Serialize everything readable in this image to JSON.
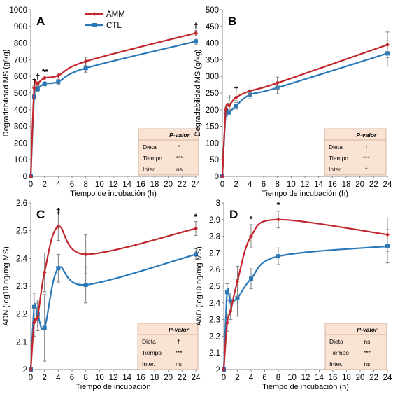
{
  "legend": {
    "amm": "AMM",
    "ctl": "CTL"
  },
  "colors": {
    "amm": "#c0282d",
    "ctl": "#2a78b8",
    "table_bg": "#fbe3d3",
    "table_border": "#c8a690",
    "axis": "#888888",
    "error": "#7f7f7f"
  },
  "chart_data": [
    {
      "panel": "A",
      "type": "line",
      "ylabel": "Degradabilidad MS (g/kg)",
      "xlabel": "Tiempo de incubación (h)",
      "xlim": [
        0,
        24
      ],
      "ylim": [
        0,
        1000
      ],
      "xticks": [
        "0",
        "2",
        "4",
        "6",
        "8",
        "10",
        "12",
        "14",
        "16",
        "18",
        "20",
        "22",
        "24"
      ],
      "yticks": [
        "0",
        "100",
        "200",
        "300",
        "400",
        "500",
        "600",
        "700",
        "800",
        "900",
        "1000"
      ],
      "x": [
        0,
        0.5,
        1,
        2,
        4,
        8,
        24
      ],
      "series": [
        {
          "name": "AMM",
          "values": [
            0,
            530,
            555,
            590,
            605,
            690,
            860
          ],
          "err": [
            0,
            12,
            12,
            12,
            15,
            25,
            15
          ]
        },
        {
          "name": "CTL",
          "values": [
            0,
            478,
            525,
            555,
            568,
            650,
            810
          ],
          "err": [
            0,
            15,
            15,
            12,
            15,
            25,
            20
          ]
        }
      ],
      "annotations": [
        {
          "x": 0.5,
          "y": 555,
          "text": "†"
        },
        {
          "x": 1,
          "y": 580,
          "text": "†"
        },
        {
          "x": 2.1,
          "y": 610,
          "text": "**"
        },
        {
          "x": 24,
          "y": 885,
          "text": "†"
        }
      ],
      "table": {
        "header": "P-valor",
        "rows": [
          [
            "Dieta",
            "*"
          ],
          [
            "Tiempo",
            "***"
          ],
          [
            "Inter.",
            "ns"
          ]
        ]
      }
    },
    {
      "panel": "B",
      "type": "line",
      "ylabel": "Degradabilidad MS (g/kg)",
      "xlabel": "Tiempo de incubación (h)",
      "xlim": [
        0,
        24
      ],
      "ylim": [
        0,
        500
      ],
      "xticks": [
        "0",
        "2",
        "4",
        "6",
        "8",
        "10",
        "12",
        "14",
        "16",
        "18",
        "20",
        "22",
        "24"
      ],
      "yticks": [
        "0",
        "50",
        "100",
        "150",
        "200",
        "250",
        "300",
        "350",
        "400",
        "450",
        "500"
      ],
      "x": [
        0,
        0.5,
        1,
        2,
        4,
        8,
        24
      ],
      "series": [
        {
          "name": "AMM",
          "values": [
            0,
            200,
            212,
            237,
            256,
            280,
            395
          ],
          "err": [
            0,
            8,
            8,
            10,
            12,
            18,
            38
          ]
        },
        {
          "name": "CTL",
          "values": [
            0,
            188,
            192,
            212,
            245,
            266,
            369
          ],
          "err": [
            0,
            8,
            8,
            10,
            12,
            18,
            38
          ]
        }
      ],
      "annotations": [
        {
          "x": 1,
          "y": 225,
          "text": "†"
        },
        {
          "x": 2,
          "y": 252,
          "text": "†"
        }
      ],
      "table": {
        "header": "P-valor",
        "rows": [
          [
            "Dieta",
            "†"
          ],
          [
            "Tiempo",
            "***"
          ],
          [
            "Inter.",
            "*"
          ]
        ]
      }
    },
    {
      "panel": "C",
      "type": "line",
      "ylabel": "ADN  (log10 ng/mg MS)",
      "xlabel": "Tiempo de incubación",
      "xlim": [
        0,
        24
      ],
      "ylim": [
        2,
        2.6
      ],
      "xticks": [
        "0",
        "2",
        "4",
        "6",
        "8",
        "10",
        "12",
        "14",
        "16",
        "18",
        "20",
        "22",
        "24"
      ],
      "yticks": [
        "2",
        "2.1",
        "2.2",
        "2.3",
        "2.4",
        "2.5",
        "2.6"
      ],
      "x": [
        0,
        0.5,
        1,
        2,
        4,
        8,
        24
      ],
      "series": [
        {
          "name": "AMM",
          "values": [
            2.0,
            2.17,
            2.19,
            2.35,
            2.515,
            2.415,
            2.508
          ],
          "err": [
            0,
            0.05,
            0.05,
            0.07,
            0.05,
            0.07,
            0.025
          ]
        },
        {
          "name": "CTL",
          "values": [
            2.0,
            2.225,
            2.2,
            2.15,
            2.365,
            2.305,
            2.415
          ],
          "err": [
            0,
            0.05,
            0.05,
            0.12,
            0.05,
            0.065,
            0.02
          ]
        }
      ],
      "annotations": [
        {
          "x": 4,
          "y": 2.56,
          "text": "†"
        },
        {
          "x": 24,
          "y": 2.54,
          "text": "*"
        }
      ],
      "table": {
        "header": "P-valor",
        "rows": [
          [
            "Dieta",
            "†"
          ],
          [
            "Tiempo",
            "***"
          ],
          [
            "Inter.",
            "ns"
          ]
        ]
      }
    },
    {
      "panel": "D",
      "type": "line",
      "ylabel": "AND (log10 ng/mg MS)",
      "xlabel": "Tiempo de incubación (h)",
      "xlim": [
        0,
        24
      ],
      "ylim": [
        2,
        3
      ],
      "xticks": [
        "0",
        "2",
        "4",
        "6",
        "8",
        "10",
        "12",
        "14",
        "16",
        "18",
        "20",
        "22",
        "24"
      ],
      "yticks": [
        "2",
        "2.1",
        "2.2",
        "2.3",
        "2.4",
        "2.5",
        "2.6",
        "2.7",
        "2.8",
        "2.9",
        "3"
      ],
      "x": [
        0,
        0.5,
        1,
        2,
        4,
        8,
        24
      ],
      "series": [
        {
          "name": "AMM",
          "values": [
            2.0,
            2.28,
            2.35,
            2.53,
            2.8,
            2.9,
            2.81
          ],
          "err": [
            0,
            0.05,
            0.05,
            0.09,
            0.07,
            0.05,
            0.1
          ]
        },
        {
          "name": "CTL",
          "values": [
            2.0,
            2.465,
            2.41,
            2.43,
            2.545,
            2.68,
            2.74
          ],
          "err": [
            0,
            0.05,
            0.05,
            0.11,
            0.06,
            0.05,
            0.1
          ]
        }
      ],
      "annotations": [
        {
          "x": 4,
          "y": 2.885,
          "text": "*"
        },
        {
          "x": 8,
          "y": 2.97,
          "text": "*"
        }
      ],
      "table": {
        "header": "P-valor",
        "rows": [
          [
            "Dieta",
            "ns"
          ],
          [
            "Tiempo",
            "***"
          ],
          [
            "Inter.",
            "ns"
          ]
        ]
      }
    }
  ]
}
